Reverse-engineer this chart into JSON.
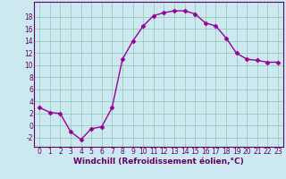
{
  "hours": [
    0,
    1,
    2,
    3,
    4,
    5,
    6,
    7,
    8,
    9,
    10,
    11,
    12,
    13,
    14,
    15,
    16,
    17,
    18,
    19,
    20,
    21,
    22,
    23
  ],
  "values": [
    3.0,
    2.2,
    2.0,
    -1.0,
    -2.3,
    -0.5,
    -0.2,
    3.0,
    11.0,
    14.0,
    16.5,
    18.2,
    18.7,
    19.0,
    19.0,
    18.5,
    17.0,
    16.5,
    14.5,
    12.0,
    11.0,
    10.8,
    10.5,
    10.5
  ],
  "line_color": "#990099",
  "marker": "D",
  "marker_size": 2.5,
  "bg_color": "#cce8f0",
  "grid_color": "#99ccbb",
  "xlabel": "Windchill (Refroidissement éolien,°C)",
  "ylim": [
    -3.5,
    20.5
  ],
  "xlim": [
    -0.5,
    23.5
  ],
  "yticks": [
    -2,
    0,
    2,
    4,
    6,
    8,
    10,
    12,
    14,
    16,
    18
  ],
  "xticks": [
    0,
    1,
    2,
    3,
    4,
    5,
    6,
    7,
    8,
    9,
    10,
    11,
    12,
    13,
    14,
    15,
    16,
    17,
    18,
    19,
    20,
    21,
    22,
    23
  ],
  "axis_color": "#660066",
  "tick_fontsize": 5.5,
  "xlabel_fontsize": 6.5
}
